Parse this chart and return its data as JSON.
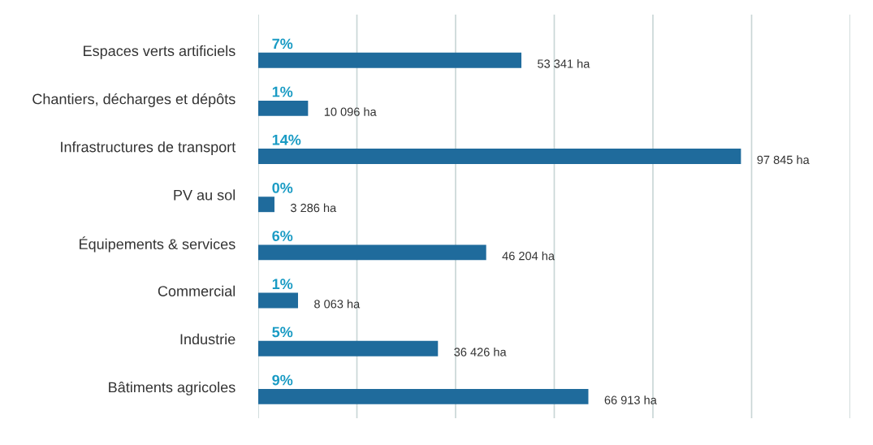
{
  "chart_data": {
    "type": "bar",
    "orientation": "horizontal",
    "categories": [
      "Espaces verts artificiels",
      "Chantiers, décharges et dépôts",
      "Infrastructures de transport",
      "PV au sol",
      "Équipements & services",
      "Commercial",
      "Industrie",
      "Bâtiments agricoles"
    ],
    "values": [
      53341,
      10096,
      97845,
      3286,
      46204,
      8063,
      36426,
      66913
    ],
    "value_labels": [
      "53 341 ha",
      "10 096 ha",
      "97 845 ha",
      "3 286 ha",
      "46 204 ha",
      "8 063 ha",
      "36 426 ha",
      "66 913 ha"
    ],
    "color": "#1f6b9c",
    "xlim": [
      0,
      120000
    ],
    "xticks": [
      {
        "value": 0,
        "label": null
      },
      {
        "value": 20000,
        "label": null
      },
      {
        "value": 40000,
        "label": null
      },
      {
        "value": 60000,
        "label": null
      },
      {
        "value": 80000,
        "label": null
      },
      {
        "value": 100000,
        "label": null
      },
      {
        "value": 120000,
        "label": null
      }
    ],
    "tick_labels": "y",
    "grid": "x",
    "annotations": [
      "7%",
      "1%",
      "14%",
      "0%",
      "6%",
      "1%",
      "5%",
      "9%"
    ]
  }
}
